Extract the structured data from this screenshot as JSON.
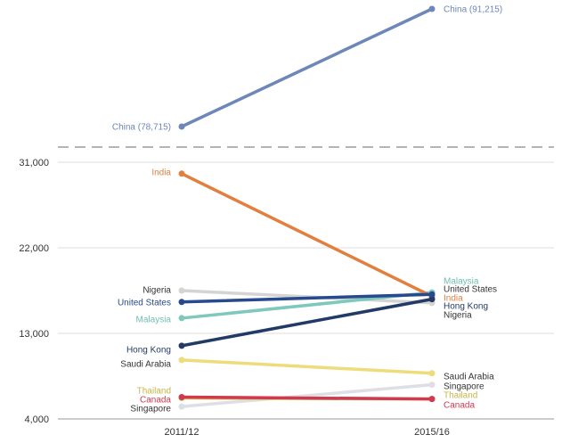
{
  "chart_data": {
    "type": "line",
    "categories": [
      "2011/12",
      "2015/16"
    ],
    "y_ticks": [
      {
        "value": 4000,
        "label": "4,000"
      },
      {
        "value": 13000,
        "label": "13,000"
      },
      {
        "value": 22000,
        "label": "22,000"
      },
      {
        "value": 31000,
        "label": "31,000"
      }
    ],
    "ylim": [
      4000,
      31000
    ],
    "axis_break": true,
    "grid": true,
    "series": [
      {
        "name": "China",
        "values": [
          78715,
          91215
        ],
        "color": "#6d87b8",
        "left_label": "China (78,715)",
        "right_label": "China (91,215)",
        "left_color": "#6d87b8",
        "right_color": "#6d87b8"
      },
      {
        "name": "India",
        "values": [
          29800,
          16900
        ],
        "color": "#e37f3e",
        "left_label": "India",
        "right_label": "India",
        "left_color": "#e37f3e",
        "right_color": "#e37f3e"
      },
      {
        "name": "Nigeria",
        "values": [
          17500,
          16200
        ],
        "color": "#d4d4d4",
        "left_label": "Nigeria",
        "right_label": "Nigeria",
        "left_color": "#333333",
        "right_color": "#333333"
      },
      {
        "name": "United States",
        "values": [
          16300,
          17100
        ],
        "color": "#274a8f",
        "left_label": "United States",
        "right_label": "United States",
        "left_color": "#274a8f",
        "right_color": "#333333"
      },
      {
        "name": "Malaysia",
        "values": [
          14600,
          17300
        ],
        "color": "#7ec9bc",
        "left_label": "Malaysia",
        "right_label": "Malaysia",
        "left_color": "#6fbfae",
        "right_color": "#6fbfae"
      },
      {
        "name": "Hong Kong",
        "values": [
          11700,
          16600
        ],
        "color": "#223a66",
        "left_label": "Hong Kong",
        "right_label": "Hong Kong",
        "left_color": "#223a66",
        "right_color": "#223a66"
      },
      {
        "name": "Saudi Arabia",
        "values": [
          10200,
          8800
        ],
        "color": "#eedc7a",
        "left_label": "Saudi Arabia",
        "right_label": "Saudi Arabia",
        "left_color": "#333333",
        "right_color": "#333333"
      },
      {
        "name": "Thailand",
        "values": [
          6200,
          6100
        ],
        "color": "#d0c55a",
        "left_label": "Thailand",
        "right_label": "Thailand",
        "left_color": "#c9b54a",
        "right_color": "#c9b54a"
      },
      {
        "name": "Canada",
        "values": [
          6300,
          6100
        ],
        "color": "#cf3a4f",
        "left_label": "Canada",
        "right_label": "Canada",
        "left_color": "#cf3a4f",
        "right_color": "#cf3a4f"
      },
      {
        "name": "Singapore",
        "values": [
          5300,
          7600
        ],
        "color": "#dedee6",
        "left_label": "Singapore",
        "right_label": "Singapore",
        "left_color": "#333333",
        "right_color": "#333333"
      }
    ]
  }
}
